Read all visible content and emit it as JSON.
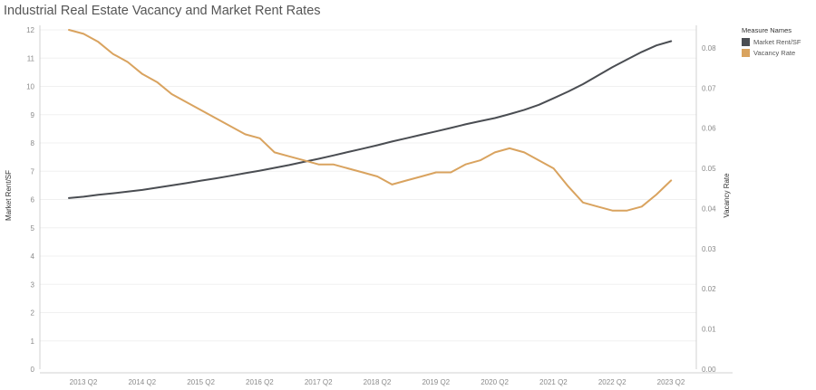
{
  "chart_data": {
    "type": "line",
    "title": "Industrial Real Estate Vacancy and Market Rent Rates",
    "xlabel": "",
    "ylabel_left": "Market Rent/SF",
    "ylabel_right": "Vacancy Rate",
    "x_ticks": [
      "2013 Q2",
      "2014 Q2",
      "2015 Q2",
      "2016 Q2",
      "2017 Q2",
      "2018 Q2",
      "2019 Q2",
      "2020 Q2",
      "2021 Q2",
      "2022 Q2",
      "2023 Q2"
    ],
    "y_left_ticks": [
      "0",
      "1",
      "2",
      "3",
      "4",
      "5",
      "6",
      "7",
      "8",
      "9",
      "10",
      "11",
      "12"
    ],
    "y_right_ticks": [
      "0.00",
      "0.01",
      "0.02",
      "0.03",
      "0.04",
      "0.05",
      "0.06",
      "0.07",
      "0.08"
    ],
    "ylim_left": [
      0,
      12
    ],
    "ylim_right": [
      0,
      0.0845
    ],
    "x": [
      "2013 Q2",
      "2013 Q3",
      "2013 Q4",
      "2014 Q1",
      "2014 Q2",
      "2014 Q3",
      "2014 Q4",
      "2015 Q1",
      "2015 Q2",
      "2015 Q3",
      "2015 Q4",
      "2016 Q1",
      "2016 Q2",
      "2016 Q3",
      "2016 Q4",
      "2017 Q1",
      "2017 Q2",
      "2017 Q3",
      "2017 Q4",
      "2018 Q1",
      "2018 Q2",
      "2018 Q3",
      "2018 Q4",
      "2019 Q1",
      "2019 Q2",
      "2019 Q3",
      "2019 Q4",
      "2020 Q1",
      "2020 Q2",
      "2020 Q3",
      "2020 Q4",
      "2021 Q1",
      "2021 Q2",
      "2021 Q3",
      "2021 Q4",
      "2022 Q1",
      "2022 Q2",
      "2022 Q3",
      "2022 Q4",
      "2023 Q1",
      "2023 Q2",
      "2023 Q3"
    ],
    "series": [
      {
        "name": "Market Rent/SF",
        "axis": "left",
        "color": "#4a4d52",
        "values": [
          6.05,
          6.1,
          6.17,
          6.22,
          6.28,
          6.34,
          6.42,
          6.5,
          6.58,
          6.67,
          6.75,
          6.84,
          6.93,
          7.02,
          7.12,
          7.22,
          7.33,
          7.44,
          7.56,
          7.68,
          7.8,
          7.92,
          8.05,
          8.17,
          8.29,
          8.41,
          8.53,
          8.66,
          8.77,
          8.88,
          9.02,
          9.17,
          9.35,
          9.58,
          9.82,
          10.08,
          10.38,
          10.68,
          10.95,
          11.22,
          11.45,
          11.6
        ]
      },
      {
        "name": "Vacancy Rate",
        "axis": "right",
        "color": "#d9a35f",
        "values": [
          0.0845,
          0.0835,
          0.0815,
          0.0785,
          0.0765,
          0.0735,
          0.0715,
          0.0685,
          0.0665,
          0.0645,
          0.0625,
          0.0605,
          0.0585,
          0.0575,
          0.054,
          0.053,
          0.052,
          0.051,
          0.051,
          0.05,
          0.049,
          0.048,
          0.046,
          0.047,
          0.048,
          0.049,
          0.049,
          0.051,
          0.052,
          0.054,
          0.055,
          0.054,
          0.052,
          0.05,
          0.0455,
          0.0415,
          0.0405,
          0.0395,
          0.0395,
          0.0405,
          0.0435,
          0.047
        ]
      }
    ],
    "legend": {
      "position": "right",
      "title": "Measure Names",
      "entries": [
        {
          "name": "Market Rent/SF",
          "color": "#4a4d52"
        },
        {
          "name": "Vacancy Rate",
          "color": "#d9a35f"
        }
      ]
    },
    "grid": true
  }
}
